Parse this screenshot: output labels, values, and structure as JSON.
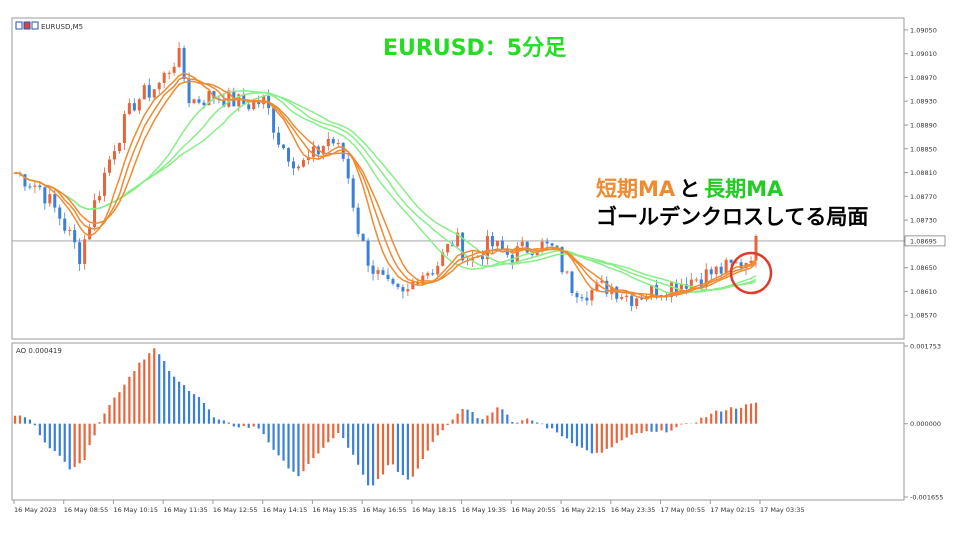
{
  "chart_data": [
    {
      "type": "candlestick",
      "symbol_label": "EURUSD,M5",
      "title": "EURUSD：5分足",
      "y_ticks": [
        "1.09050",
        "1.09010",
        "1.08970",
        "1.08930",
        "1.08890",
        "1.08850",
        "1.08810",
        "1.08770",
        "1.08730",
        "1.08695",
        "1.08650",
        "1.08610",
        "1.08570"
      ],
      "y_range": [
        1.0853,
        1.0907
      ],
      "current_price": "1.08695",
      "x_ticks": [
        "16 May 2023",
        "16 May 08:55",
        "16 May 10:15",
        "16 May 11:35",
        "16 May 12:55",
        "16 May 14:15",
        "16 May 15:35",
        "16 May 16:55",
        "16 May 18:15",
        "16 May 19:35",
        "16 May 20:55",
        "16 May 22:15",
        "16 May 23:35",
        "17 May 00:55",
        "17 May 02:15",
        "17 May 03:35"
      ],
      "series": [
        {
          "name": "Short MA",
          "color": "#f08a30"
        },
        {
          "name": "Long MA",
          "color": "#88ee88"
        }
      ],
      "candle_colors": {
        "up": "#e8643a",
        "down": "#3a7fd8"
      },
      "annotation": {
        "line1_part1": "短期MA",
        "line1_part2": "と",
        "line1_part3": "長期MA",
        "line2": "ゴールデンクロスしてる局面",
        "highlight_color": "#e03a2a"
      }
    },
    {
      "type": "bar",
      "label": "AO 0.000419",
      "y_ticks": [
        "0.001753",
        "0.000000",
        "-0.001655"
      ],
      "y_range": [
        -0.001655,
        0.001753
      ],
      "colors": {
        "rising": "#e8643a",
        "falling": "#3a7fd8"
      }
    }
  ]
}
